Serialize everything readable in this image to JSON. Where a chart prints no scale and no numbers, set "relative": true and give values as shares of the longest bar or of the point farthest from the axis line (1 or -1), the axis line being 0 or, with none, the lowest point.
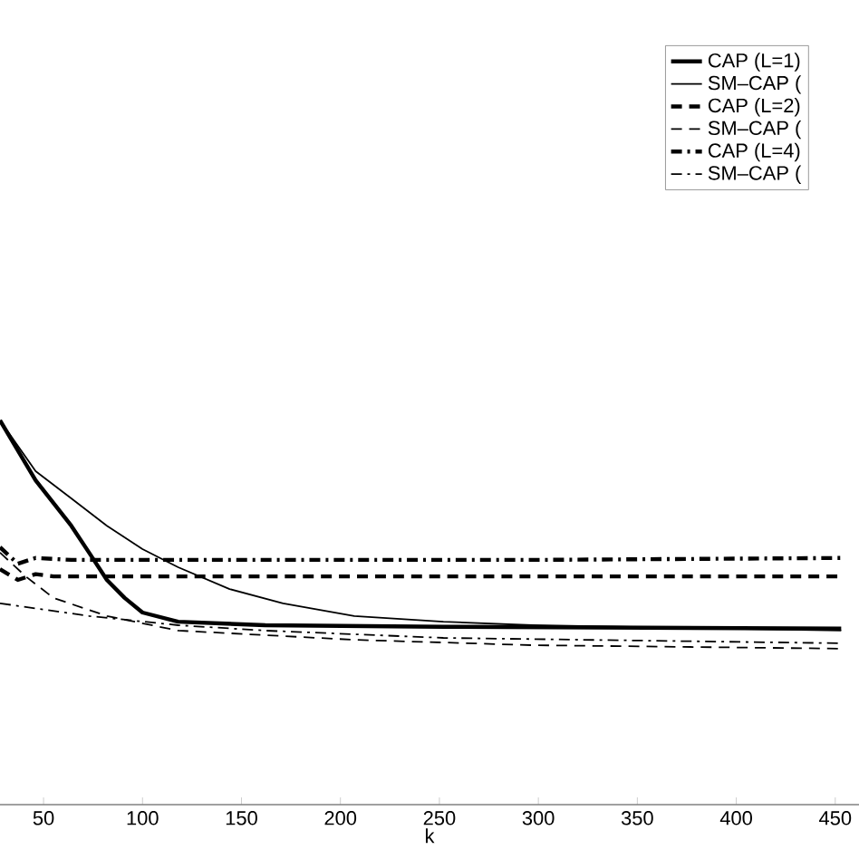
{
  "chart_data": {
    "type": "line",
    "xlabel": "k",
    "relative": true,
    "xlim": [
      28,
      462
    ],
    "xticks": [
      50,
      100,
      150,
      200,
      250,
      300,
      350,
      400,
      450
    ],
    "legend": "top right",
    "series": [
      {
        "name": "CAP (L=1)",
        "line_style": "solid",
        "color": "#000000",
        "x": [
          28,
          46,
          64,
          73,
          82,
          91,
          100,
          118,
          162,
          252,
          453
        ],
        "values": [
          1.0,
          0.844,
          0.726,
          0.656,
          0.585,
          0.538,
          0.5,
          0.476,
          0.467,
          0.463,
          0.458
        ]
      },
      {
        "name": "SM–CAP (",
        "line_style": "solid",
        "color": "#000000",
        "x": [
          28,
          46,
          64,
          82,
          100,
          118,
          144,
          171,
          207,
          252,
          297,
          453
        ],
        "values": [
          1.0,
          0.868,
          0.797,
          0.726,
          0.665,
          0.618,
          0.561,
          0.524,
          0.491,
          0.476,
          0.467,
          0.453
        ]
      },
      {
        "name": "CAP (L=2)",
        "line_style": "dashed",
        "color": "#000000",
        "x": [
          28,
          37,
          46,
          55,
          73,
          118,
          200,
          300,
          453
        ],
        "values": [
          0.613,
          0.585,
          0.6,
          0.594,
          0.594,
          0.594,
          0.594,
          0.594,
          0.594
        ]
      },
      {
        "name": "SM–CAP (",
        "line_style": "dashed",
        "color": "#000000",
        "x": [
          28,
          41,
          55,
          82,
          118,
          207,
          297,
          453
        ],
        "values": [
          0.656,
          0.594,
          0.538,
          0.491,
          0.453,
          0.429,
          0.415,
          0.406
        ]
      },
      {
        "name": "CAP (L=4)",
        "line_style": "dashdot",
        "color": "#000000",
        "x": [
          28,
          37,
          46,
          64,
          118,
          200,
          300,
          453
        ],
        "values": [
          0.67,
          0.627,
          0.642,
          0.637,
          0.637,
          0.637,
          0.637,
          0.642
        ]
      },
      {
        "name": "SM–CAP (",
        "line_style": "dashdot",
        "color": "#000000",
        "x": [
          28,
          73,
          118,
          162,
          252,
          453
        ],
        "values": [
          0.524,
          0.491,
          0.467,
          0.453,
          0.434,
          0.42
        ]
      }
    ]
  }
}
